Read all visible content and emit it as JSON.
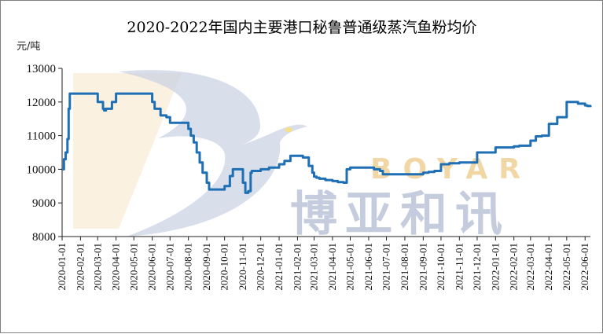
{
  "chart_data": {
    "type": "line",
    "title": "2020-2022年国内主要港口秘鲁普通级蒸汽鱼粉均价",
    "ylabel": "元/吨",
    "xlabel": "",
    "ylim": [
      8000,
      13000
    ],
    "yticks": [
      8000,
      9000,
      10000,
      11000,
      12000,
      13000
    ],
    "grid": false,
    "legend": "none",
    "x_range": [
      "2020-01-01",
      "2022-06-10"
    ],
    "x_tick_labels": [
      "2020-01-01",
      "2020-02-01",
      "2020-03-01",
      "2020-04-01",
      "2020-05-01",
      "2020-06-01",
      "2020-07-01",
      "2020-08-01",
      "2020-09-01",
      "2020-10-01",
      "2020-11-01",
      "2020-12-01",
      "2021-01-01",
      "2021-02-01",
      "2021-03-01",
      "2021-04-01",
      "2021-05-01",
      "2021-06-01",
      "2021-07-01",
      "2021-08-01",
      "2021-09-01",
      "2021-10-01",
      "2021-11-01",
      "2021-12-01",
      "2022-01-01",
      "2022-02-01",
      "2022-03-01",
      "2022-04-01",
      "2022-05-01",
      "2022-06-01"
    ],
    "series": [
      {
        "color": "#1f6fb5",
        "x": [
          "2020-01-01",
          "2020-01-04",
          "2020-01-07",
          "2020-01-10",
          "2020-01-12",
          "2020-01-14",
          "2020-01-16",
          "2020-01-25",
          "2020-02-10",
          "2020-02-25",
          "2020-03-01",
          "2020-03-05",
          "2020-03-10",
          "2020-03-12",
          "2020-03-15",
          "2020-03-20",
          "2020-03-25",
          "2020-04-01",
          "2020-04-10",
          "2020-04-20",
          "2020-05-01",
          "2020-05-15",
          "2020-05-25",
          "2020-06-01",
          "2020-06-05",
          "2020-06-15",
          "2020-06-25",
          "2020-07-01",
          "2020-07-10",
          "2020-07-20",
          "2020-07-27",
          "2020-08-01",
          "2020-08-05",
          "2020-08-10",
          "2020-08-15",
          "2020-08-20",
          "2020-08-25",
          "2020-09-01",
          "2020-09-05",
          "2020-09-15",
          "2020-09-25",
          "2020-10-01",
          "2020-10-10",
          "2020-10-15",
          "2020-10-20",
          "2020-10-25",
          "2020-11-01",
          "2020-11-05",
          "2020-11-10",
          "2020-11-14",
          "2020-11-16",
          "2020-11-20",
          "2020-11-25",
          "2020-12-01",
          "2020-12-15",
          "2021-01-01",
          "2021-01-10",
          "2021-01-20",
          "2021-02-01",
          "2021-02-10",
          "2021-02-20",
          "2021-02-26",
          "2021-03-01",
          "2021-03-05",
          "2021-03-10",
          "2021-03-20",
          "2021-04-01",
          "2021-04-10",
          "2021-04-20",
          "2021-04-25",
          "2021-05-01",
          "2021-05-15",
          "2021-06-01",
          "2021-06-10",
          "2021-06-20",
          "2021-06-25",
          "2021-07-01",
          "2021-07-15",
          "2021-08-01",
          "2021-08-15",
          "2021-09-01",
          "2021-09-10",
          "2021-09-20",
          "2021-10-01",
          "2021-10-15",
          "2021-11-01",
          "2021-11-15",
          "2021-12-01",
          "2021-12-15",
          "2022-01-01",
          "2022-01-15",
          "2022-02-01",
          "2022-02-10",
          "2022-02-20",
          "2022-03-01",
          "2022-03-10",
          "2022-03-20",
          "2022-04-01",
          "2022-04-15",
          "2022-04-25",
          "2022-05-01",
          "2022-05-10",
          "2022-05-20",
          "2022-06-01",
          "2022-06-05",
          "2022-06-10"
        ],
        "y": [
          10000,
          10300,
          10500,
          10900,
          11800,
          12250,
          12250,
          12250,
          12250,
          12250,
          12000,
          12000,
          11800,
          11750,
          11800,
          11800,
          12000,
          12250,
          12250,
          12250,
          12250,
          12250,
          12250,
          12000,
          11800,
          11600,
          11550,
          11380,
          11380,
          11380,
          11380,
          11200,
          11000,
          10800,
          10500,
          10200,
          9900,
          9600,
          9400,
          9400,
          9400,
          9500,
          9800,
          10000,
          10000,
          10000,
          9600,
          9300,
          9350,
          9900,
          9950,
          9950,
          9950,
          10000,
          10050,
          10150,
          10250,
          10400,
          10400,
          10350,
          10100,
          9900,
          9780,
          9750,
          9720,
          9680,
          9650,
          9620,
          9600,
          10000,
          10050,
          10050,
          10050,
          10000,
          9950,
          9850,
          9850,
          9850,
          9850,
          9850,
          9900,
          9920,
          9950,
          10150,
          10180,
          10200,
          10200,
          10500,
          10500,
          10650,
          10650,
          10680,
          10700,
          10700,
          10850,
          10980,
          11000,
          11350,
          11550,
          11550,
          12000,
          12000,
          11950,
          11900,
          11880,
          11850
        ]
      }
    ],
    "watermark": {
      "latin": "BOYAR",
      "cjk": "博亚和讯"
    }
  }
}
